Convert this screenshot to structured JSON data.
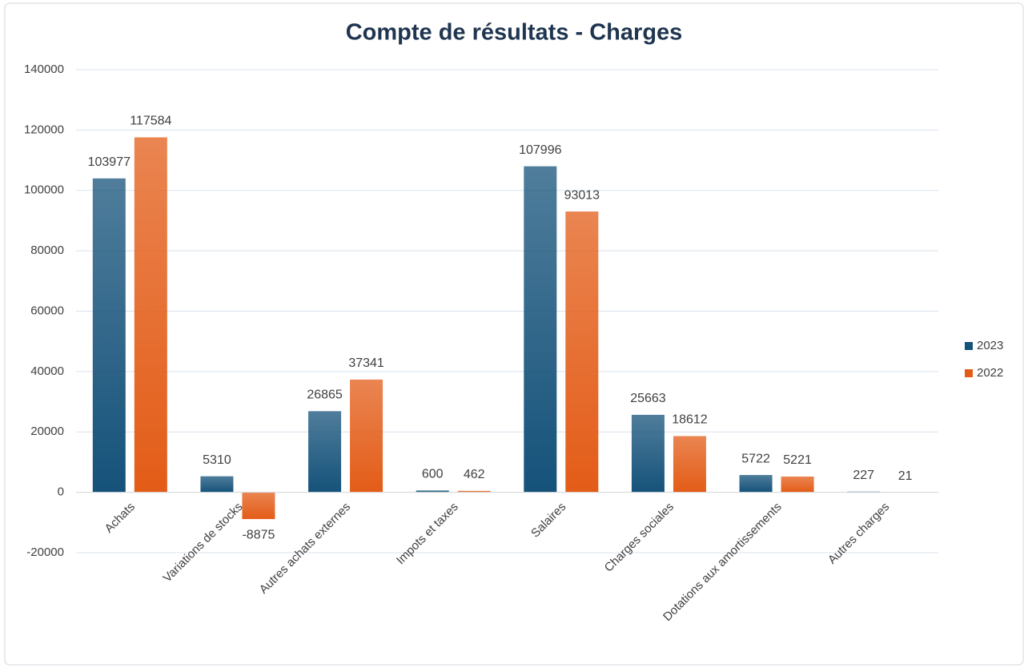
{
  "chart_data": {
    "type": "bar",
    "title": "Compte de résultats - Charges",
    "categories": [
      "Achats",
      "Variations de stocks",
      "Autres achats externes",
      "Impots et taxes",
      "Salaires",
      "Charges sociales",
      "Dotations aux amortissements",
      "Autres charges"
    ],
    "series": [
      {
        "name": "2023",
        "color": "#15527a",
        "values": [
          103977,
          5310,
          26865,
          600,
          107996,
          25663,
          5722,
          227
        ]
      },
      {
        "name": "2022",
        "color": "#e35c17",
        "values": [
          117584,
          -8875,
          37341,
          462,
          93013,
          18612,
          5221,
          21
        ]
      }
    ],
    "ylim": [
      -20000,
      140000
    ],
    "yticks": [
      -20000,
      0,
      20000,
      40000,
      60000,
      80000,
      100000,
      120000,
      140000
    ],
    "grid": true,
    "legend": "right"
  }
}
